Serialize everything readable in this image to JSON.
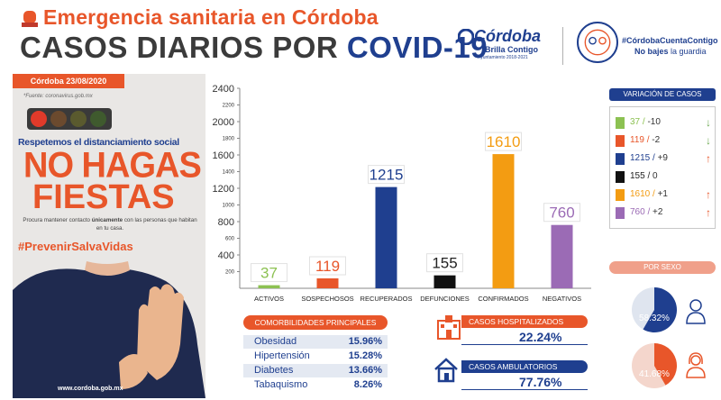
{
  "header": {
    "subtitle": "Emergencia sanitaria en Córdoba",
    "title_main": "CASOS DIARIOS POR ",
    "title_highlight": "COVID-19",
    "logo_name": "Córdoba",
    "logo_tagline": "Brilla Contigo",
    "logo_small": "Ayuntamiento 2018-2021",
    "hashtag": "#CórdobaCuentaContigo",
    "slogan_bold": "No bajes",
    "slogan_rest": " la guardia"
  },
  "left_panel": {
    "date": "Córdoba 23/08/2020",
    "source": "*Fuente: coronavirus.gob.mx",
    "campaign_line": "Respetemos el distanciamiento social",
    "headline_1": "NO HAGAS",
    "headline_2": "FIESTAS",
    "advice_1": "Procura mantener contacto ",
    "advice_bold": "únicamente",
    "advice_2": " con las personas que habitan en tu casa.",
    "hashtag": "#PrevenirSalvaVidas",
    "website": "www.cordoba.gob.mx",
    "traffic_light_colors": [
      "#e03a2a",
      "#6b4a2e",
      "#5a5a2e",
      "#3f5a2e"
    ]
  },
  "chart_data": {
    "type": "bar",
    "categories": [
      "ACTIVOS",
      "SOSPECHOSOS",
      "RECUPERADOS",
      "DEFUNCIONES",
      "CONFIRMADOS",
      "NEGATIVOS"
    ],
    "values": [
      37,
      119,
      1215,
      155,
      1610,
      760
    ],
    "value_labels": [
      "37",
      "119",
      "1215",
      "155",
      "1610",
      "760"
    ],
    "colors": [
      "#8cc152",
      "#e8562a",
      "#1f3f8f",
      "#111111",
      "#f39c12",
      "#9b6bb5"
    ],
    "ylim": [
      0,
      2400
    ],
    "yticks_major": [
      200,
      400,
      600,
      800,
      1000,
      1200,
      1400,
      1600,
      1800,
      2000,
      2200,
      2400
    ],
    "ytick_labels": [
      "200",
      "400",
      "600",
      "800",
      "1000",
      "1200",
      "1400",
      "1600",
      "1800",
      "2000",
      "2200",
      "2400"
    ],
    "grid": false
  },
  "comorbidities": {
    "title": "COMORBILIDADES PRINCIPALES",
    "items": [
      {
        "name": "Obesidad",
        "pct": "15.96%"
      },
      {
        "name": "Hipertensión",
        "pct": "15.28%"
      },
      {
        "name": "Diabetes",
        "pct": "13.66%"
      },
      {
        "name": "Tabaquismo",
        "pct": "8.26%"
      }
    ]
  },
  "hospital": {
    "hosp_label": "CASOS HOSPITALIZADOS",
    "hosp_value": "22.24%",
    "amb_label": "CASOS AMBULATORIOS",
    "amb_value": "77.76%"
  },
  "variation": {
    "title": "VARIACIÓN DE CASOS",
    "rows": [
      {
        "value": "37 /",
        "change": "-10",
        "color": "#8cc152",
        "arrow": "down",
        "arrow_color": "#6aa84f"
      },
      {
        "value": "119 /",
        "change": "-2",
        "color": "#e8562a",
        "arrow": "down",
        "arrow_color": "#6aa84f"
      },
      {
        "value": "1215 /",
        "change": "+9",
        "color": "#1f3f8f",
        "arrow": "up",
        "arrow_color": "#e8562a"
      },
      {
        "value": "155 /",
        "change": "0",
        "color": "#111111",
        "arrow": "none",
        "arrow_color": "#e8562a"
      },
      {
        "value": "1610 /",
        "change": "+1",
        "color": "#f39c12",
        "arrow": "up",
        "arrow_color": "#e8562a"
      },
      {
        "value": "760 /",
        "change": "+2",
        "color": "#9b6bb5",
        "arrow": "up",
        "arrow_color": "#e8562a"
      }
    ]
  },
  "sexo": {
    "title": "POR SEXO",
    "male_pct": "58.32%",
    "male_value": 58.32,
    "female_pct": "41.68%",
    "female_value": 41.68
  }
}
